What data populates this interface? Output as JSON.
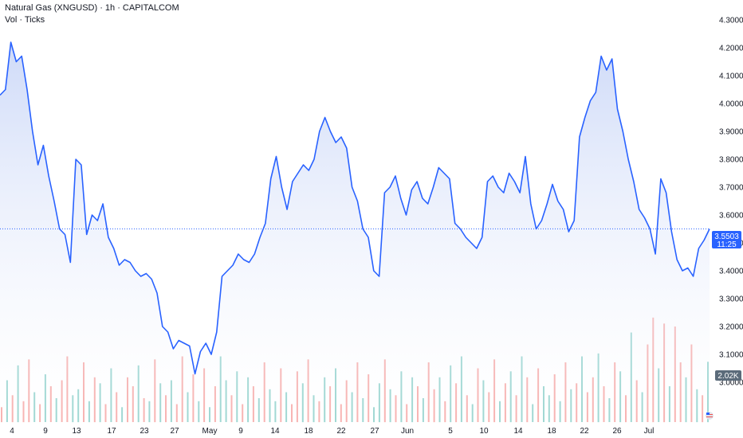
{
  "header": {
    "title": "Natural Gas (XNGUSD) · 1h · CAPITALCOM",
    "volume_label": "Vol · Ticks"
  },
  "price_tag": {
    "value": "3.5503",
    "countdown": "11:25"
  },
  "volume_tag": {
    "value": "2.02K"
  },
  "colors": {
    "line": "#2962ff",
    "area_top": "#c9d6f7",
    "area_bottom": "#ffffff",
    "vol_up": "#26a69a",
    "vol_down": "#ef5350",
    "price_tag_bg": "#2962ff",
    "vol_tag_bg": "#5b6b7a",
    "current_line": "#2962ff"
  },
  "chart_data": {
    "type": "area",
    "series": [
      {
        "values": [
          4.03,
          4.05,
          4.22,
          4.15,
          4.17,
          4.05,
          3.9,
          3.78,
          3.85,
          3.74,
          3.65,
          3.55,
          3.53,
          3.43,
          3.8,
          3.78,
          3.53,
          3.6,
          3.58,
          3.64,
          3.52,
          3.48,
          3.42,
          3.44,
          3.43,
          3.4,
          3.38,
          3.39,
          3.37,
          3.32,
          3.2,
          3.18,
          3.12,
          3.15,
          3.14,
          3.13,
          3.03,
          3.11,
          3.14,
          3.1,
          3.18,
          3.38,
          3.4,
          3.42,
          3.46,
          3.44,
          3.43,
          3.46,
          3.52,
          3.57,
          3.73,
          3.81,
          3.7,
          3.62,
          3.72,
          3.75,
          3.78,
          3.76,
          3.8,
          3.9,
          3.95,
          3.9,
          3.86,
          3.88,
          3.84,
          3.7,
          3.65,
          3.55,
          3.52,
          3.4,
          3.38,
          3.68,
          3.7,
          3.74,
          3.66,
          3.6,
          3.69,
          3.72,
          3.66,
          3.64,
          3.7,
          3.77,
          3.75,
          3.73,
          3.57,
          3.55,
          3.52,
          3.5,
          3.48,
          3.52,
          3.72,
          3.74,
          3.7,
          3.68,
          3.75,
          3.72,
          3.68,
          3.81,
          3.64,
          3.55,
          3.58,
          3.64,
          3.71,
          3.65,
          3.62,
          3.54,
          3.58,
          3.88,
          3.95,
          4.01,
          4.04,
          4.17,
          4.12,
          4.16,
          3.98,
          3.9,
          3.8,
          3.72,
          3.62,
          3.59,
          3.55,
          3.46,
          3.73,
          3.68,
          3.54,
          3.44,
          3.4,
          3.41,
          3.38,
          3.48,
          3.51,
          3.55
        ]
      }
    ],
    "volume": [
      500,
      1400,
      900,
      1900,
      700,
      2100,
      1000,
      600,
      1600,
      1200,
      800,
      1400,
      2200,
      900,
      1100,
      2000,
      700,
      1500,
      1300,
      600,
      1800,
      1000,
      500,
      1500,
      1200,
      1900,
      800,
      700,
      2100,
      1300,
      900,
      1400,
      600,
      2200,
      1000,
      1600,
      700,
      1800,
      500,
      1200,
      2200,
      1400,
      900,
      1700,
      600,
      1500,
      1200,
      800,
      2000,
      1100,
      700,
      1800,
      1000,
      600,
      1700,
      1300,
      2100,
      900,
      700,
      1500,
      1200,
      1800,
      600,
      1400,
      1000,
      2000,
      800,
      1600,
      500,
      1300,
      2100,
      1100,
      900,
      1700,
      600,
      1500,
      1200,
      800,
      2000,
      1100,
      1500,
      700,
      1900,
      1300,
      2200,
      900,
      600,
      1800,
      1400,
      1000,
      2100,
      700,
      1300,
      1700,
      900,
      2200,
      1500,
      600,
      1800,
      1200,
      900,
      1600,
      700,
      2000,
      1100,
      1300,
      2200,
      1000,
      1500,
      2300,
      1200,
      800,
      2000,
      1700,
      900,
      3000,
      1400,
      1000,
      2600,
      3500,
      1800,
      3300,
      1200,
      3200,
      2000,
      1500,
      2600,
      1100,
      900,
      2020
    ],
    "volume_colors": [
      "r",
      "g",
      "r",
      "g",
      "r",
      "r",
      "g",
      "r",
      "g",
      "r",
      "g",
      "r",
      "r",
      "g",
      "g",
      "r",
      "g",
      "r",
      "g",
      "r",
      "g",
      "r",
      "g",
      "r",
      "r",
      "g",
      "r",
      "g",
      "r",
      "g",
      "r",
      "g",
      "r",
      "r",
      "g",
      "r",
      "g",
      "r",
      "g",
      "r",
      "g",
      "g",
      "r",
      "g",
      "r",
      "g",
      "r",
      "g",
      "r",
      "g",
      "g",
      "r",
      "g",
      "r",
      "r",
      "g",
      "r",
      "g",
      "r",
      "g",
      "r",
      "g",
      "r",
      "r",
      "g",
      "r",
      "g",
      "r",
      "g",
      "g",
      "r",
      "g",
      "r",
      "g",
      "r",
      "g",
      "r",
      "g",
      "r",
      "r",
      "g",
      "r",
      "g",
      "r",
      "g",
      "r",
      "g",
      "r",
      "g",
      "r",
      "r",
      "g",
      "r",
      "g",
      "r",
      "g",
      "r",
      "g",
      "r",
      "g",
      "g",
      "r",
      "g",
      "r",
      "g",
      "r",
      "g",
      "r",
      "r",
      "g",
      "r",
      "g",
      "r",
      "g",
      "r",
      "g",
      "r",
      "g",
      "r",
      "r",
      "g",
      "r",
      "g",
      "r",
      "r",
      "g",
      "r",
      "g",
      "r",
      "g",
      "g",
      "r",
      "g"
    ],
    "current_price": 3.5503,
    "y_ticks": [
      "4.3000",
      "4.2000",
      "4.1000",
      "4.0000",
      "3.9000",
      "3.8000",
      "3.7000",
      "3.6000",
      "3.5000",
      "3.4000",
      "3.3000",
      "3.2000",
      "3.1000",
      "3.0000"
    ],
    "ylim": [
      2.93,
      4.3
    ],
    "x_ticks": [
      "4",
      "9",
      "13",
      "17",
      "23",
      "27",
      "May",
      "9",
      "14",
      "18",
      "22",
      "27",
      "Jun",
      "5",
      "10",
      "14",
      "18",
      "22",
      "26",
      "Jul"
    ],
    "grid": false
  }
}
